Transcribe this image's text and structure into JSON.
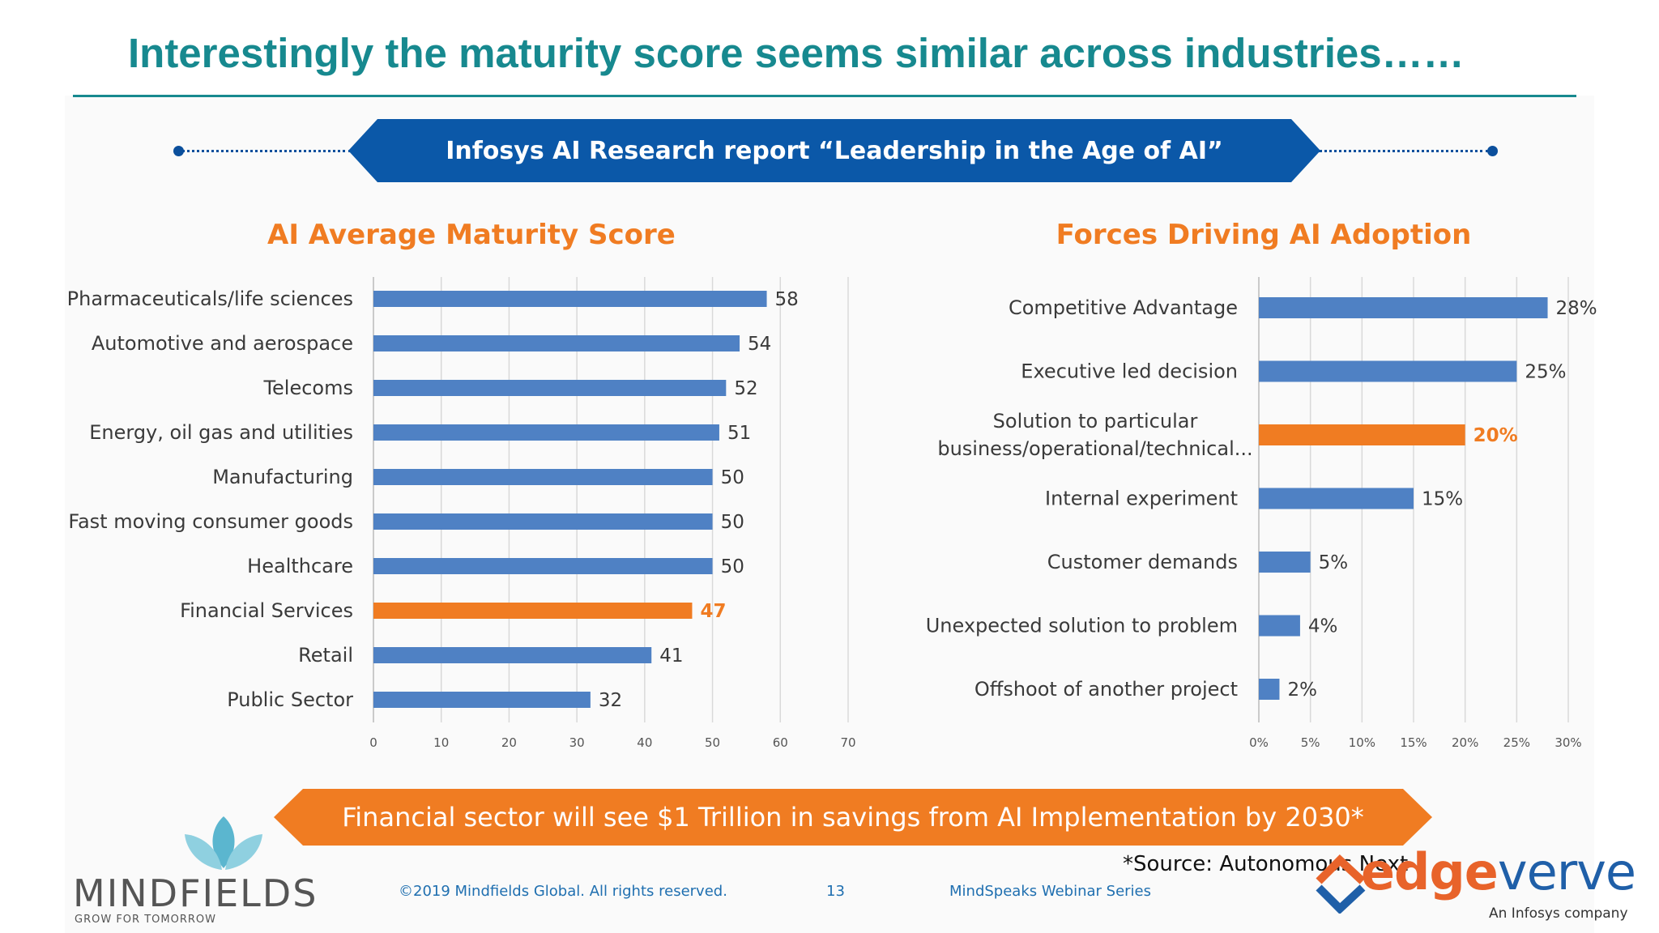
{
  "header": {
    "title": "Interestingly the maturity score seems similar across industries……"
  },
  "banner_top": {
    "text": "Infosys AI Research report “Leadership in the Age of AI”"
  },
  "banner_bottom": {
    "text": "Financial sector will see $1 Trillion in savings from AI Implementation by 2030*"
  },
  "source_note": "*Source: Autonomous Next",
  "footer": {
    "copyright": "©2019 Mindfields Global. All rights reserved.",
    "page_number": "13",
    "series": "MindSpeaks Webinar Series"
  },
  "logos": {
    "mindfields": {
      "word": "MINDFIELDS",
      "tagline": "GROW FOR TOMORROW",
      "icon": "lotus-icon"
    },
    "edgeverve": {
      "word_a": "edge",
      "word_b": "verve",
      "tagline": "An Infosys company",
      "icon": "edgeverve-e-icon"
    }
  },
  "colors": {
    "bar": "#4f81c4",
    "highlight": "#f07c22",
    "title": "#17898f",
    "banner_blue": "#0b58a8"
  },
  "chart_data": [
    {
      "type": "bar",
      "orientation": "horizontal",
      "title": "AI Average Maturity Score",
      "categories": [
        "Pharmaceuticals/life sciences",
        "Automotive and aerospace",
        "Telecoms",
        "Energy, oil gas and utilities",
        "Manufacturing",
        "Fast moving consumer goods",
        "Healthcare",
        "Financial Services",
        "Retail",
        "Public Sector"
      ],
      "values": [
        58,
        54,
        52,
        51,
        50,
        50,
        50,
        47,
        41,
        32
      ],
      "value_labels": [
        "58",
        "54",
        "52",
        "51",
        "50",
        "50",
        "50",
        "47",
        "41",
        "32"
      ],
      "highlight_index": 7,
      "xlim": [
        0,
        70
      ],
      "xticks": [
        0,
        10,
        20,
        30,
        40,
        50,
        60,
        70
      ],
      "xtick_labels": [
        "0",
        "10",
        "20",
        "30",
        "40",
        "50",
        "60",
        "70"
      ],
      "grid": true
    },
    {
      "type": "bar",
      "orientation": "horizontal",
      "title": "Forces Driving AI Adoption",
      "categories": [
        [
          "Competitive Advantage"
        ],
        [
          "Executive led decision"
        ],
        [
          "Solution to particular",
          "business/operational/technical..."
        ],
        [
          "Internal experiment"
        ],
        [
          "Customer demands"
        ],
        [
          "Unexpected solution to problem"
        ],
        [
          "Offshoot of another project"
        ]
      ],
      "values": [
        28,
        25,
        20,
        15,
        5,
        4,
        2
      ],
      "value_labels": [
        "28%",
        "25%",
        "20%",
        "15%",
        "5%",
        "4%",
        "2%"
      ],
      "highlight_index": 2,
      "xlim": [
        0,
        30
      ],
      "xticks": [
        0,
        5,
        10,
        15,
        20,
        25,
        30
      ],
      "xtick_labels": [
        "0%",
        "5%",
        "10%",
        "15%",
        "20%",
        "25%",
        "30%"
      ],
      "grid": true
    }
  ]
}
